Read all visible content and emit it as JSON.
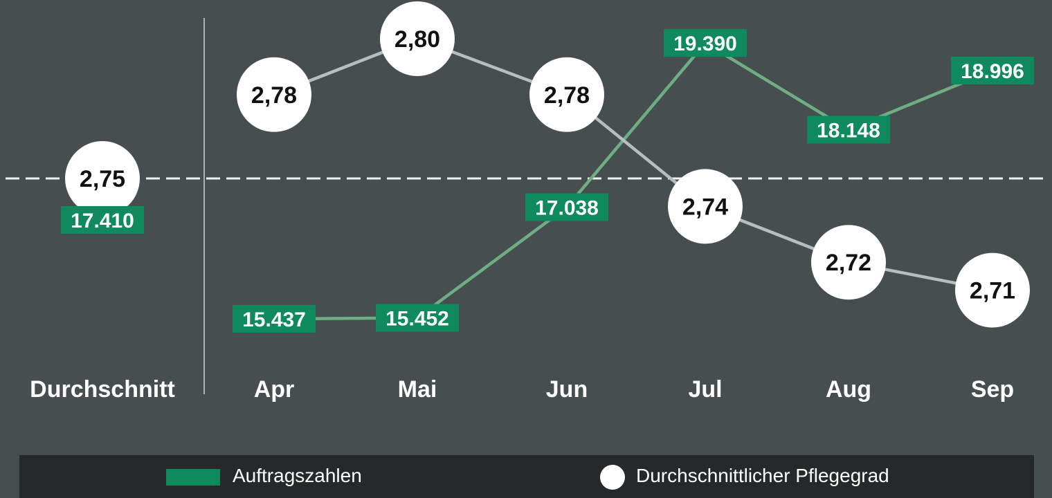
{
  "colors": {
    "background": "#464e4f",
    "green": "#0e8a5c",
    "green_line": "#6fae85",
    "grey_line": "#b6bfc0",
    "circle": "#ffffff",
    "legend_bg": "#26292a"
  },
  "chart_data": {
    "type": "line",
    "categories": [
      "Durchschnitt",
      "Apr",
      "Mai",
      "Jun",
      "Jul",
      "Aug",
      "Sep"
    ],
    "series": [
      {
        "name": "Auftragszahlen",
        "marker": "green-label",
        "values": [
          17410,
          15437,
          15452,
          17038,
          19390,
          18148,
          18996
        ],
        "labels": [
          "17.410",
          "15.437",
          "15.452",
          "17.038",
          "19.390",
          "18.148",
          "18.996"
        ]
      },
      {
        "name": "Durchschnittlicher Pflegegrad",
        "marker": "white-circle",
        "values": [
          2.75,
          2.78,
          2.8,
          2.78,
          2.74,
          2.72,
          2.71
        ],
        "labels": [
          "2,75",
          "2,78",
          "2,80",
          "2,78",
          "2,74",
          "2,72",
          "2,71"
        ]
      }
    ],
    "reference_line": "average (dashed)",
    "grid": false,
    "legend_position": "bottom"
  },
  "legend": {
    "orders_label": "Auftragszahlen",
    "care_label": "Durchschnittlicher Pflegegrad"
  }
}
